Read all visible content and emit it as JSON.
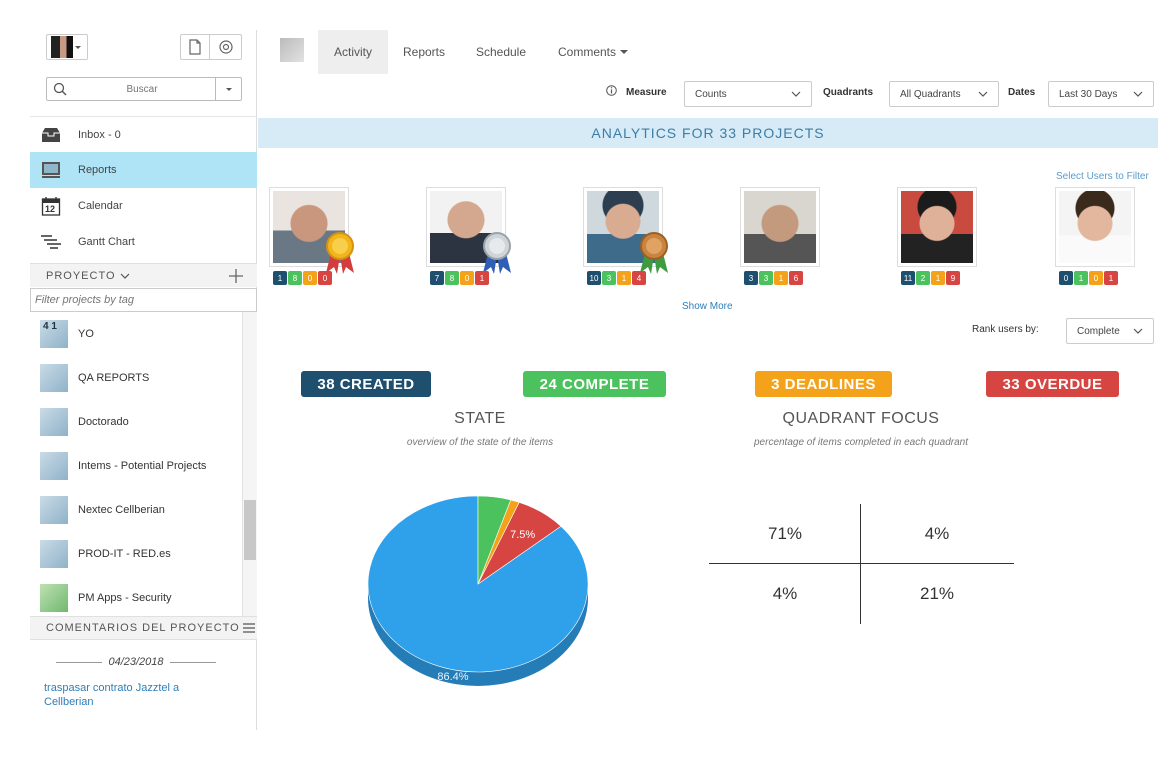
{
  "sidebar": {
    "search_placeholder": "Buscar",
    "nav": [
      {
        "label": "Inbox - 0",
        "icon": "inbox-icon"
      },
      {
        "label": "Reports",
        "icon": "reports-icon"
      },
      {
        "label": "Calendar",
        "icon": "calendar-icon",
        "day": "12"
      },
      {
        "label": "Gantt Chart",
        "icon": "gantt-icon"
      }
    ],
    "projects_header": "PROYECTO",
    "filter_placeholder": "Filter projects by tag",
    "projects": [
      {
        "name": "YO",
        "thumb": "4 1"
      },
      {
        "name": "QA REPORTS"
      },
      {
        "name": "Doctorado"
      },
      {
        "name": "Intems - Potential Projects"
      },
      {
        "name": "Nextec Cellberian"
      },
      {
        "name": "PROD-IT - RED.es"
      },
      {
        "name": "PM Apps - Security"
      }
    ],
    "comments_header": "COMENTARIOS DEL PROYECTO",
    "comment_date": "04/23/2018",
    "comment_text": "traspasar contrato Jazztel a Cellberian"
  },
  "tabs": [
    {
      "label": "Activity"
    },
    {
      "label": "Reports"
    },
    {
      "label": "Schedule"
    },
    {
      "label": "Comments"
    }
  ],
  "filters": {
    "measure_label": "Measure",
    "measure_value": "Counts",
    "quadrants_label": "Quadrants",
    "quadrants_value": "All Quadrants",
    "dates_label": "Dates",
    "dates_value": "Last 30 Days"
  },
  "banner": "ANALYTICS FOR 33 PROJECTS",
  "select_users_link": "Select Users to Filter",
  "users": [
    {
      "medal": "gold",
      "stats": [
        "1",
        "8",
        "0",
        "0"
      ]
    },
    {
      "medal": "silver",
      "stats": [
        "7",
        "8",
        "0",
        "1"
      ]
    },
    {
      "medal": "bronze",
      "stats": [
        "10",
        "3",
        "1",
        "4"
      ]
    },
    {
      "medal": "",
      "stats": [
        "3",
        "3",
        "1",
        "6"
      ]
    },
    {
      "medal": "",
      "stats": [
        "11",
        "2",
        "1",
        "9"
      ]
    },
    {
      "medal": "",
      "stats": [
        "0",
        "1",
        "0",
        "1"
      ]
    }
  ],
  "show_more": "Show More",
  "rank_label": "Rank users by:",
  "rank_value": "Complete",
  "badges": [
    {
      "label": "38 CREATED",
      "color": "#1e4f6f"
    },
    {
      "label": "24 COMPLETE",
      "color": "#4cc25e"
    },
    {
      "label": "3 DEADLINES",
      "color": "#f5a21b"
    },
    {
      "label": "33 OVERDUE",
      "color": "#d64541"
    }
  ],
  "state": {
    "title": "STATE",
    "subtitle": "overview of the state of the items"
  },
  "quadrant": {
    "title": "QUADRANT FOCUS",
    "subtitle": "percentage of items completed in each quadrant",
    "values": [
      "71%",
      "4%",
      "4%",
      "21%"
    ]
  },
  "chart_data": {
    "type": "pie",
    "title": "STATE",
    "slices": [
      {
        "value": 86.4,
        "label": "86.4%",
        "color": "#2fa0ea"
      },
      {
        "value": 7.5,
        "label": "7.5%",
        "color": "#d64541"
      },
      {
        "value": 1.3,
        "label": "",
        "color": "#f5a21b"
      },
      {
        "value": 4.8,
        "label": "",
        "color": "#4cc25e"
      }
    ]
  },
  "colors": {
    "accent": "#aee4f5",
    "banner_bg": "#d6ebf6",
    "link": "#2f7fb8",
    "stat_colors": [
      "#1e4f6f",
      "#4cc25e",
      "#f5a21b",
      "#d64541"
    ]
  }
}
